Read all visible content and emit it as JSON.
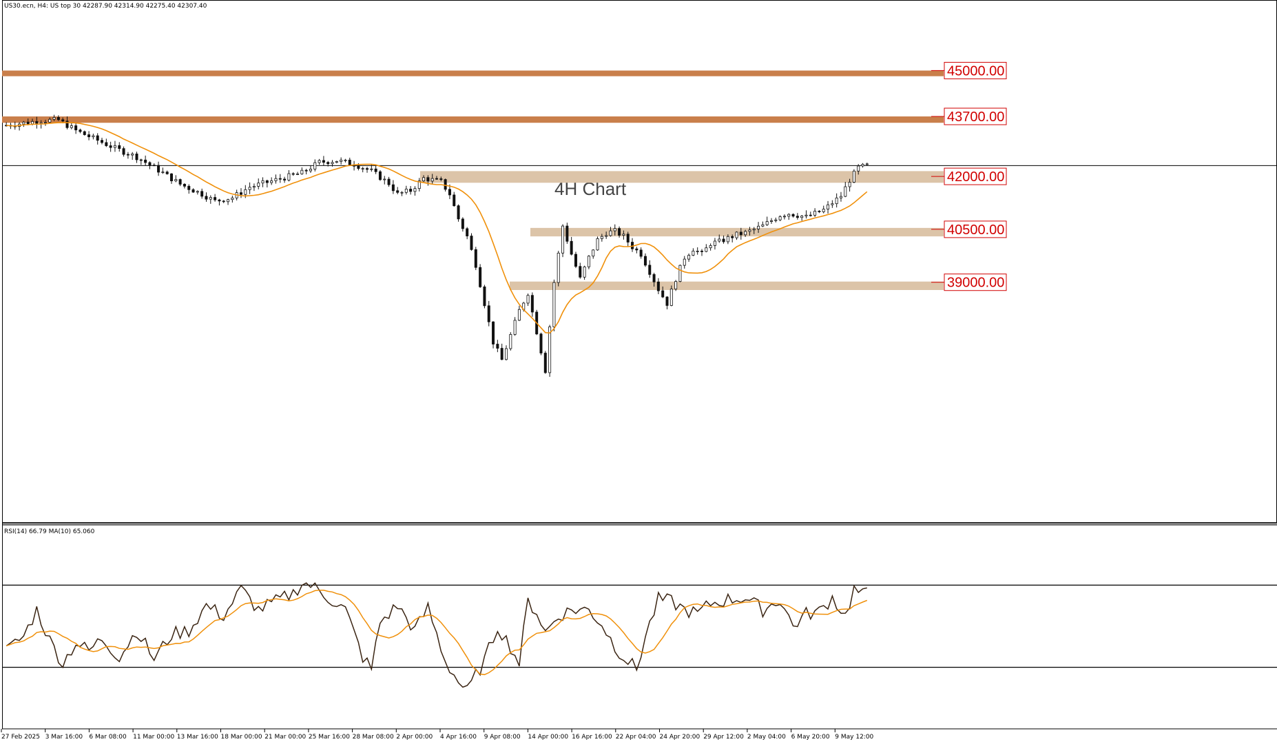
{
  "header": {
    "symbol_line": "US30.ecn, H4:  US top 30  42287.90 42314.90 42275.40 42307.40"
  },
  "indicator": {
    "label": "RSI(14) 66.79 MA(10) 65.060"
  },
  "annotation": "4H Chart",
  "colors": {
    "resistance_zone": "#c97f4b",
    "support_zone": "#dcc4a8",
    "candle": "#111111",
    "moving_average": "#f0900a",
    "rsi_line": "#3a2412",
    "level_label": "#d10000"
  },
  "chart_data": [
    {
      "type": "candlestick",
      "name": "price",
      "x_ticks": [
        "27 Feb 2025",
        "3 Mar 16:00",
        "6 Mar 08:00",
        "11 Mar 00:00",
        "13 Mar 16:00",
        "18 Mar 00:00",
        "21 Mar 00:00",
        "25 Mar 16:00",
        "28 Mar 08:00",
        "2 Apr 00:00",
        "4 Apr 16:00",
        "9 Apr 08:00",
        "14 Apr 00:00",
        "16 Apr 16:00",
        "22 Apr 04:00",
        "24 Apr 20:00",
        "29 Apr 12:00",
        "2 May 04:00",
        "6 May 20:00",
        "9 May 12:00"
      ],
      "price_levels": [
        {
          "label": "45000.00",
          "value": 45000,
          "zone": [
            44840,
            45000
          ],
          "style": "resistance"
        },
        {
          "label": "43700.00",
          "value": 43700,
          "zone": [
            43520,
            43700
          ],
          "style": "resistance"
        },
        {
          "label": "42000.00",
          "value": 42000,
          "zone": [
            41820,
            42150
          ],
          "style": "support"
        },
        {
          "label": "40500.00",
          "value": 40500,
          "zone": [
            40300,
            40540
          ],
          "style": "support"
        },
        {
          "label": "39000.00",
          "value": 39000,
          "zone": [
            38780,
            39020
          ],
          "style": "support"
        }
      ],
      "current_price": 42307.4,
      "ylim": [
        32200,
        47000
      ],
      "path_anchors": [
        [
          0,
          43450
        ],
        [
          8,
          43580
        ],
        [
          12,
          43600
        ],
        [
          16,
          43300
        ],
        [
          20,
          43080
        ],
        [
          25,
          42800
        ],
        [
          30,
          42550
        ],
        [
          36,
          42100
        ],
        [
          40,
          41780
        ],
        [
          45,
          41500
        ],
        [
          48,
          41300
        ],
        [
          52,
          41400
        ],
        [
          56,
          41700
        ],
        [
          62,
          41900
        ],
        [
          68,
          42100
        ],
        [
          72,
          42400
        ],
        [
          76,
          42450
        ],
        [
          80,
          42350
        ],
        [
          84,
          42150
        ],
        [
          88,
          41800
        ],
        [
          90,
          41500
        ],
        [
          93,
          41600
        ],
        [
          96,
          41950
        ],
        [
          100,
          41850
        ],
        [
          102,
          41500
        ],
        [
          104,
          40800
        ],
        [
          106,
          40300
        ],
        [
          108,
          39500
        ],
        [
          110,
          38400
        ],
        [
          112,
          37300
        ],
        [
          114,
          36800
        ],
        [
          116,
          37500
        ],
        [
          118,
          38200
        ],
        [
          120,
          38700
        ],
        [
          122,
          37600
        ],
        [
          124,
          36500
        ],
        [
          126,
          39000
        ],
        [
          128,
          40600
        ],
        [
          130,
          39800
        ],
        [
          132,
          39100
        ],
        [
          134,
          39700
        ],
        [
          136,
          40200
        ],
        [
          138,
          40400
        ],
        [
          140,
          40450
        ],
        [
          142,
          40300
        ],
        [
          144,
          40000
        ],
        [
          146,
          39800
        ],
        [
          148,
          39300
        ],
        [
          150,
          38800
        ],
        [
          152,
          38400
        ],
        [
          154,
          39100
        ],
        [
          156,
          39700
        ],
        [
          158,
          39950
        ],
        [
          160,
          39800
        ],
        [
          162,
          40100
        ],
        [
          164,
          40150
        ],
        [
          166,
          40250
        ],
        [
          168,
          40350
        ],
        [
          170,
          40400
        ],
        [
          172,
          40500
        ],
        [
          174,
          40600
        ],
        [
          176,
          40750
        ],
        [
          178,
          40900
        ],
        [
          180,
          40950
        ],
        [
          182,
          40900
        ],
        [
          184,
          40850
        ],
        [
          186,
          40950
        ],
        [
          188,
          41050
        ],
        [
          190,
          41250
        ],
        [
          192,
          41450
        ],
        [
          194,
          41900
        ],
        [
          196,
          42250
        ],
        [
          198,
          42307
        ]
      ]
    },
    {
      "type": "line",
      "name": "rsi",
      "ylim": [
        0,
        100
      ],
      "levels": [
        70,
        30
      ],
      "path_anchors": [
        [
          0,
          38
        ],
        [
          4,
          45
        ],
        [
          7,
          58
        ],
        [
          10,
          43
        ],
        [
          13,
          32
        ],
        [
          16,
          42
        ],
        [
          19,
          38
        ],
        [
          22,
          44
        ],
        [
          26,
          35
        ],
        [
          30,
          48
        ],
        [
          34,
          34
        ],
        [
          38,
          46
        ],
        [
          42,
          48
        ],
        [
          46,
          60
        ],
        [
          50,
          55
        ],
        [
          54,
          68
        ],
        [
          58,
          58
        ],
        [
          62,
          62
        ],
        [
          66,
          66
        ],
        [
          68,
          71
        ],
        [
          70,
          70
        ],
        [
          74,
          64
        ],
        [
          78,
          58
        ],
        [
          82,
          35
        ],
        [
          84,
          29
        ],
        [
          86,
          52
        ],
        [
          90,
          60
        ],
        [
          94,
          48
        ],
        [
          97,
          59
        ],
        [
          101,
          33
        ],
        [
          104,
          23
        ],
        [
          106,
          18
        ],
        [
          108,
          26
        ],
        [
          110,
          33
        ],
        [
          113,
          50
        ],
        [
          116,
          40
        ],
        [
          118,
          32
        ],
        [
          120,
          62
        ],
        [
          122,
          57
        ],
        [
          124,
          47
        ],
        [
          127,
          55
        ],
        [
          130,
          58
        ],
        [
          134,
          58
        ],
        [
          137,
          51
        ],
        [
          140,
          40
        ],
        [
          143,
          33
        ],
        [
          145,
          29
        ],
        [
          147,
          45
        ],
        [
          150,
          63
        ],
        [
          153,
          62
        ],
        [
          156,
          58
        ],
        [
          159,
          56
        ],
        [
          162,
          61
        ],
        [
          166,
          63
        ],
        [
          170,
          64
        ],
        [
          174,
          58
        ],
        [
          178,
          63
        ],
        [
          181,
          50
        ],
        [
          184,
          56
        ],
        [
          187,
          57
        ],
        [
          190,
          64
        ],
        [
          193,
          55
        ],
        [
          195,
          68
        ],
        [
          197,
          65
        ],
        [
          198,
          66
        ]
      ]
    }
  ]
}
